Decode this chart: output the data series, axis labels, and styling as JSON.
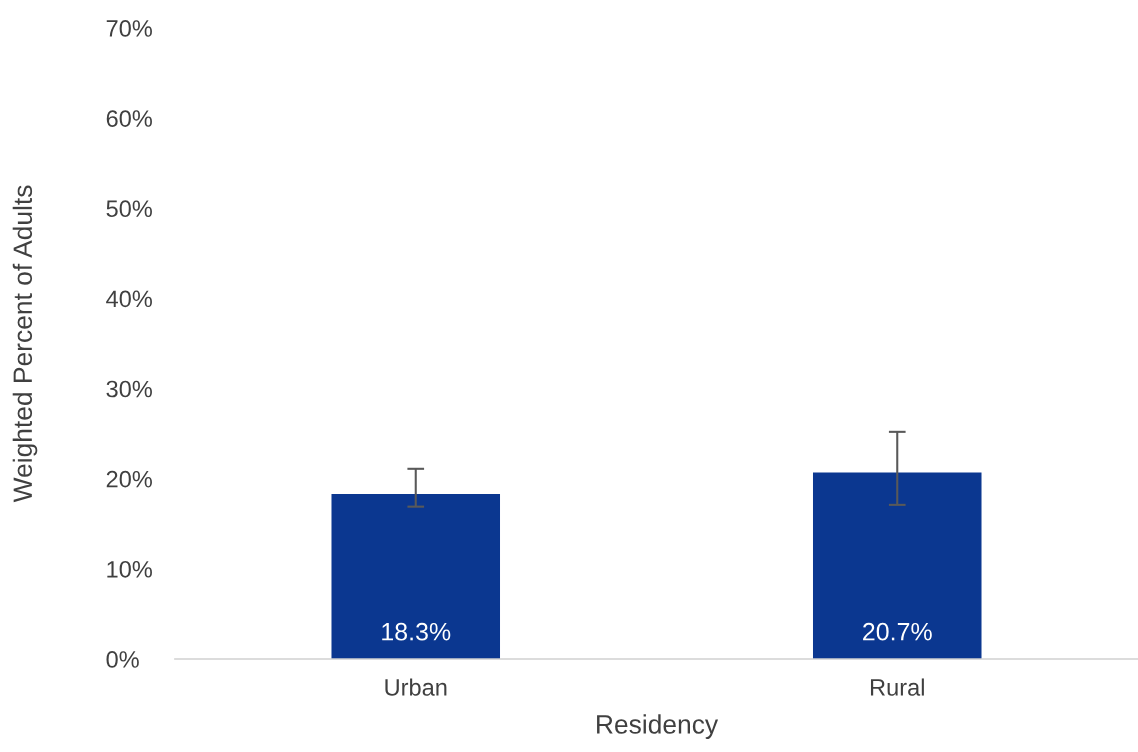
{
  "chart_data": {
    "type": "bar",
    "xlabel": "Residency",
    "ylabel": "Weighted Percent of Adults",
    "categories": [
      "Urban",
      "Rural"
    ],
    "values": [
      18.3,
      20.7
    ],
    "errors": [
      [
        16.9,
        21.1
      ],
      [
        17.1,
        25.2
      ]
    ],
    "value_labels": [
      "18.3%",
      "20.7%"
    ],
    "color": "#0b3790",
    "ylim": [
      0,
      70
    ],
    "yticks": [
      {
        "value": 0,
        "label": "0%"
      },
      {
        "value": 10,
        "label": "10%"
      },
      {
        "value": 20,
        "label": "20%"
      },
      {
        "value": 30,
        "label": "30%"
      },
      {
        "value": 40,
        "label": "40%"
      },
      {
        "value": 50,
        "label": "50%"
      },
      {
        "value": 60,
        "label": "60%"
      },
      {
        "value": 70,
        "label": "70%"
      }
    ],
    "grid": false,
    "legend": false
  }
}
